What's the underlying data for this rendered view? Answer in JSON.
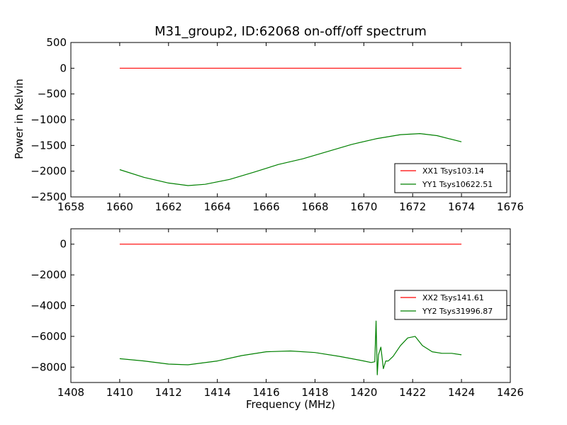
{
  "figure": {
    "title": "M31_group2, ID:62068 on-off/off spectrum",
    "ylabel": "Power in Kelvin",
    "xlabel": "Frequency (MHz)"
  },
  "chart_data": [
    {
      "type": "line",
      "panel": "top",
      "xlim": [
        1658,
        1676
      ],
      "ylim": [
        -2500,
        500
      ],
      "xticks": [
        "1658",
        "1660",
        "1662",
        "1664",
        "1666",
        "1668",
        "1670",
        "1672",
        "1674",
        "1676"
      ],
      "yticks": [
        "500",
        "0",
        "−500",
        "−1000",
        "−1500",
        "−2000",
        "−2500"
      ],
      "legend_position": "lower-right",
      "grid": false,
      "series": [
        {
          "name": "XX1 Tsys103.14",
          "color": "#ff0000",
          "x": [
            1660,
            1662,
            1664,
            1666,
            1668,
            1670,
            1672,
            1674
          ],
          "y": [
            0,
            0,
            0,
            0,
            0,
            0,
            0,
            0
          ]
        },
        {
          "name": "YY1 Tsys10622.51",
          "color": "#008000",
          "x": [
            1660,
            1661,
            1662,
            1662.8,
            1663.5,
            1664.5,
            1665.5,
            1666.5,
            1667.5,
            1668.5,
            1669.5,
            1670.5,
            1671.5,
            1672.3,
            1673,
            1673.5,
            1674
          ],
          "y": [
            -1970,
            -2120,
            -2230,
            -2280,
            -2255,
            -2160,
            -2020,
            -1870,
            -1760,
            -1620,
            -1480,
            -1370,
            -1290,
            -1270,
            -1310,
            -1370,
            -1430
          ]
        }
      ]
    },
    {
      "type": "line",
      "panel": "bottom",
      "xlim": [
        1408,
        1426
      ],
      "ylim": [
        -9000,
        1000
      ],
      "xticks": [
        "1408",
        "1410",
        "1412",
        "1414",
        "1416",
        "1418",
        "1420",
        "1422",
        "1424",
        "1426"
      ],
      "yticks": [
        "0",
        "−2000",
        "−4000",
        "−6000",
        "−8000"
      ],
      "legend_position": "right",
      "grid": false,
      "series": [
        {
          "name": "XX2 Tsys141.61",
          "color": "#ff0000",
          "x": [
            1410,
            1412,
            1414,
            1416,
            1418,
            1420,
            1422,
            1424
          ],
          "y": [
            0,
            0,
            0,
            0,
            0,
            0,
            0,
            0
          ]
        },
        {
          "name": "YY2 Tsys31996.87",
          "color": "#008000",
          "x": [
            1410,
            1411,
            1412,
            1412.8,
            1414,
            1415,
            1416,
            1417,
            1418,
            1419,
            1420,
            1420.3,
            1420.45,
            1420.5,
            1420.55,
            1420.6,
            1420.7,
            1420.8,
            1420.9,
            1421.0,
            1421.2,
            1421.5,
            1421.8,
            1422.1,
            1422.4,
            1422.8,
            1423.2,
            1423.6,
            1424
          ],
          "y": [
            -7450,
            -7600,
            -7800,
            -7850,
            -7600,
            -7250,
            -7000,
            -6950,
            -7050,
            -7300,
            -7600,
            -7700,
            -7650,
            -5000,
            -8500,
            -7200,
            -6700,
            -8100,
            -7600,
            -7600,
            -7300,
            -6600,
            -6100,
            -6000,
            -6600,
            -7000,
            -7100,
            -7100,
            -7200
          ]
        }
      ]
    }
  ]
}
